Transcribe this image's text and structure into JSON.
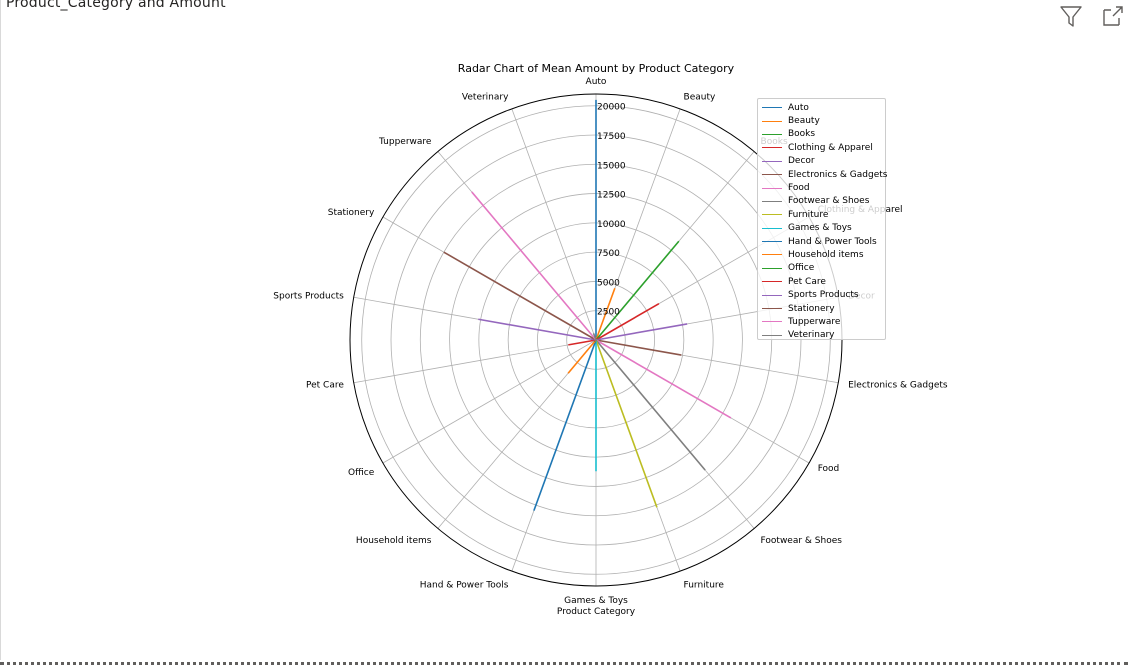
{
  "visual": {
    "title": "Product_Category and Amount"
  },
  "header_icons": [
    "filter-icon",
    "focus-mode-icon"
  ],
  "chart_data": {
    "type": "radar",
    "title": "Radar Chart of Mean Amount by Product Category",
    "xlabel": "Product Category",
    "rlim": [
      0,
      21000
    ],
    "rticks": [
      2500,
      5000,
      7500,
      10000,
      12500,
      15000,
      17500,
      20000
    ],
    "rtick_labels": [
      "2500",
      "5000",
      "7500",
      "10000",
      "12500",
      "15000",
      "17500",
      "20000"
    ],
    "grid": true,
    "legend_position": "upper-right",
    "categories": [
      "Auto",
      "Beauty",
      "Books",
      "Clothing & Apparel",
      "Decor",
      "Electronics & Gadgets",
      "Food",
      "Footwear & Shoes",
      "Furniture",
      "Games & Toys",
      "Hand & Power Tools",
      "Household items",
      "Office",
      "Pet Care",
      "Sports Products",
      "Stationery",
      "Tupperware",
      "Veterinary"
    ],
    "series": [
      {
        "name": "Auto",
        "category": "Auto",
        "value": 20500,
        "color": "#1f77b4"
      },
      {
        "name": "Beauty",
        "category": "Beauty",
        "value": 4700,
        "color": "#ff7f0e"
      },
      {
        "name": "Books",
        "category": "Books",
        "value": 11000,
        "color": "#2ca02c"
      },
      {
        "name": "Clothing & Apparel",
        "category": "Clothing & Apparel",
        "value": 6200,
        "color": "#d62728"
      },
      {
        "name": "Decor",
        "category": "Decor",
        "value": 7900,
        "color": "#9467bd"
      },
      {
        "name": "Electronics & Gadgets",
        "category": "Electronics & Gadgets",
        "value": 7400,
        "color": "#8c564b"
      },
      {
        "name": "Food",
        "category": "Food",
        "value": 13300,
        "color": "#e377c2"
      },
      {
        "name": "Footwear & Shoes",
        "category": "Footwear & Shoes",
        "value": 14500,
        "color": "#7f7f7f"
      },
      {
        "name": "Furniture",
        "category": "Furniture",
        "value": 15200,
        "color": "#bcbd22"
      },
      {
        "name": "Games & Toys",
        "category": "Games & Toys",
        "value": 11200,
        "color": "#17becf"
      },
      {
        "name": "Hand & Power Tools",
        "category": "Hand & Power Tools",
        "value": 15500,
        "color": "#1f77b4"
      },
      {
        "name": "Household items",
        "category": "Household items",
        "value": 3700,
        "color": "#ff7f0e"
      },
      {
        "name": "Office",
        "category": "Office",
        "value": 200,
        "color": "#2ca02c"
      },
      {
        "name": "Pet Care",
        "category": "Pet Care",
        "value": 2400,
        "color": "#d62728"
      },
      {
        "name": "Sports Products",
        "category": "Sports Products",
        "value": 10200,
        "color": "#9467bd"
      },
      {
        "name": "Stationery",
        "category": "Stationery",
        "value": 15000,
        "color": "#8c564b"
      },
      {
        "name": "Tupperware",
        "category": "Tupperware",
        "value": 16500,
        "color": "#e377c2"
      },
      {
        "name": "Veterinary",
        "category": "Veterinary",
        "value": 600,
        "color": "#7f7f7f"
      }
    ]
  }
}
